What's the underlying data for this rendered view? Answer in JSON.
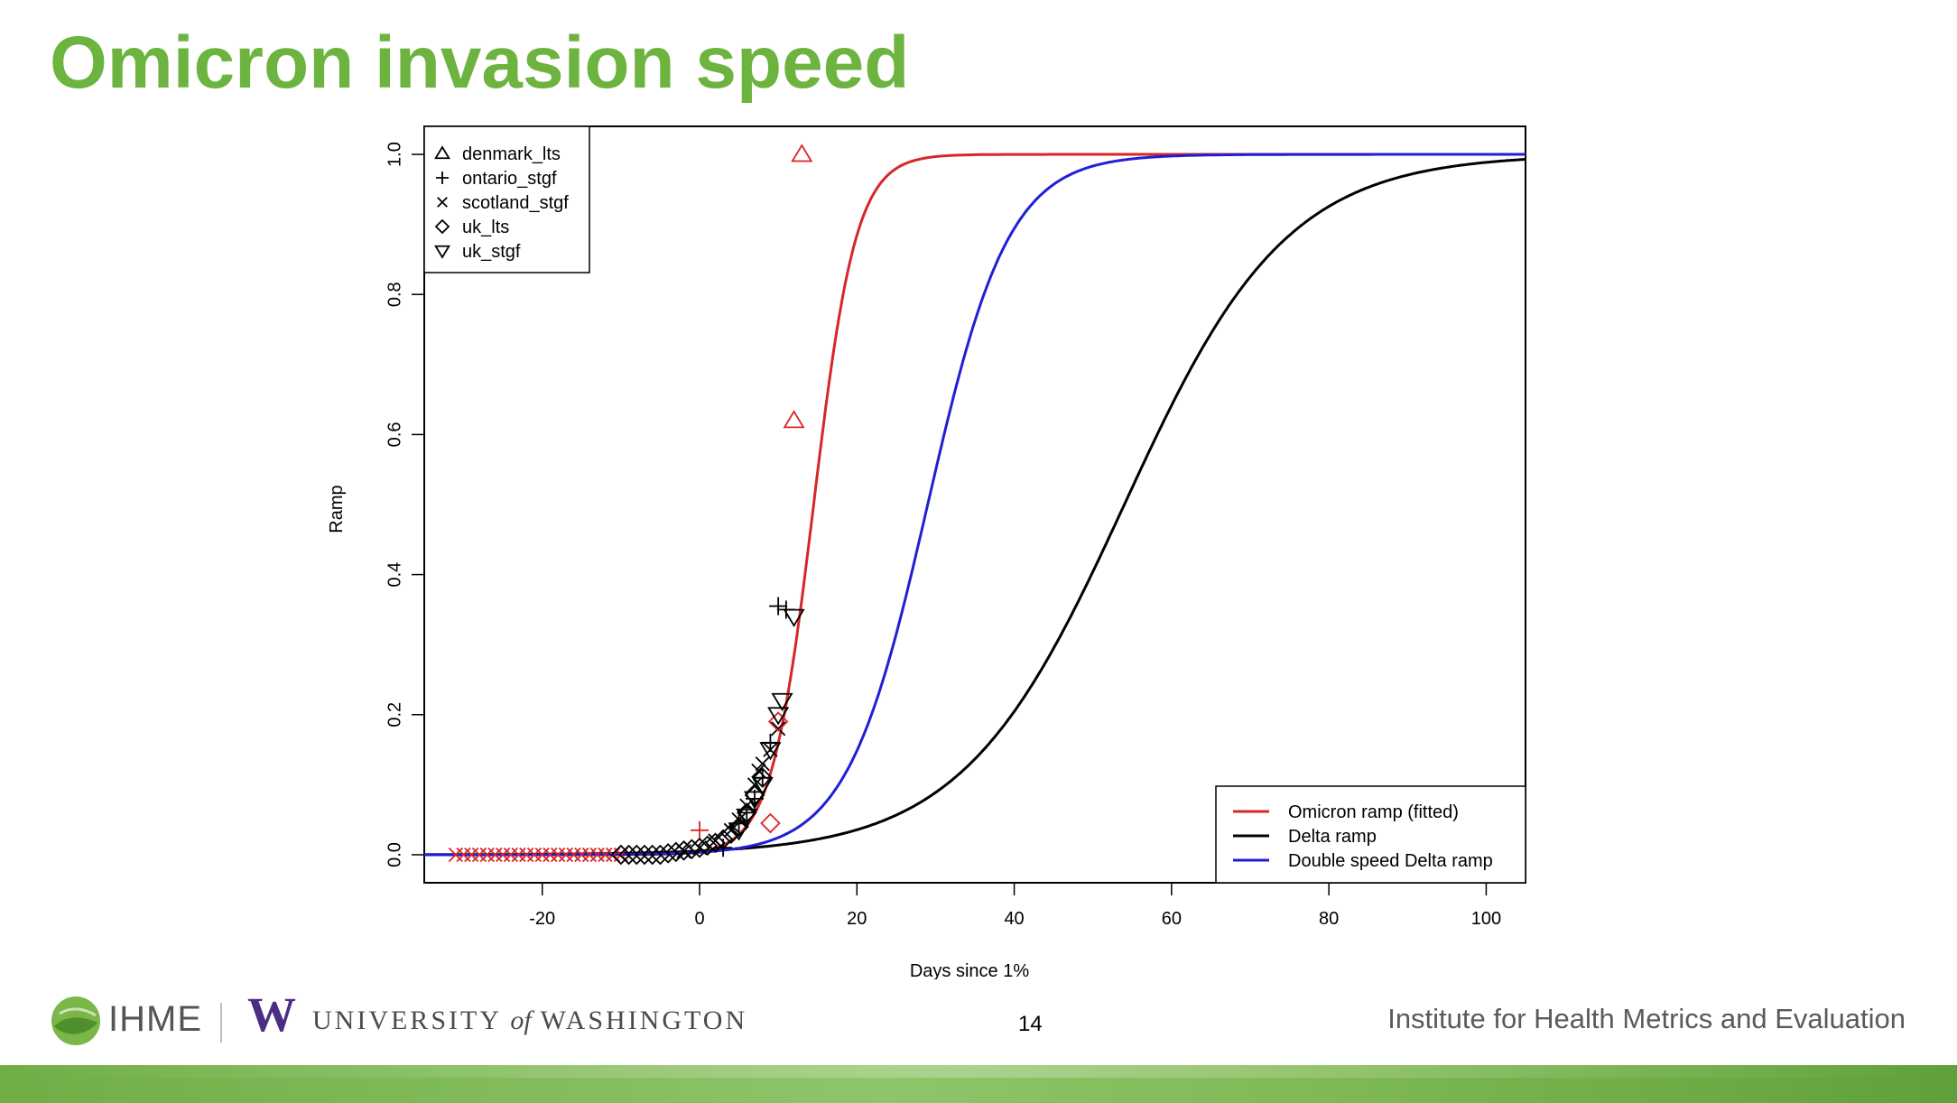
{
  "slide": {
    "title": "Omicron invasion speed",
    "title_color": "#6db33f",
    "page_number": "14"
  },
  "footer": {
    "ihme_label": "IHME",
    "uw_mark": "W",
    "uw_text_pre": "UNIVERSITY ",
    "uw_text_of": "of",
    "uw_text_post": " WASHINGTON",
    "institute": "Institute for Health Metrics and Evaluation",
    "ihme_icon": "leaf-circle-logo",
    "band_color": "#7ab648"
  },
  "chart_data": {
    "type": "scatter",
    "xlabel": "Days since 1%",
    "ylabel": "Ramp",
    "xlim": [
      -35,
      105
    ],
    "ylim": [
      -0.04,
      1.04
    ],
    "x_ticks": [
      -20,
      0,
      20,
      40,
      60,
      80,
      100
    ],
    "y_ticks": [
      0.0,
      0.2,
      0.4,
      0.6,
      0.8,
      1.0
    ],
    "x_tick_labels": [
      "-20",
      "0",
      "20",
      "40",
      "60",
      "80",
      "100"
    ],
    "y_tick_labels": [
      "0.0",
      "0.2",
      "0.4",
      "0.6",
      "0.8",
      "1.0"
    ],
    "grid": false,
    "point_legend_position": "top-left",
    "line_legend_position": "bottom-right",
    "point_series": [
      {
        "name": "denmark_lts",
        "marker": "triangle-up",
        "points": [
          {
            "x": 12,
            "y": 0.62,
            "color": "#d62728"
          },
          {
            "x": 13,
            "y": 1.0,
            "color": "#d62728"
          }
        ]
      },
      {
        "name": "ontario_stgf",
        "marker": "plus",
        "points": [
          {
            "x": 0,
            "y": 0.035,
            "color": "#d62728"
          },
          {
            "x": 3,
            "y": 0.01,
            "color": "#000000"
          },
          {
            "x": 5,
            "y": 0.045,
            "color": "#000000"
          },
          {
            "x": 6,
            "y": 0.06,
            "color": "#000000"
          },
          {
            "x": 7,
            "y": 0.08,
            "color": "#000000"
          },
          {
            "x": 8,
            "y": 0.11,
            "color": "#000000"
          },
          {
            "x": 9,
            "y": 0.16,
            "color": "#000000"
          },
          {
            "x": 10,
            "y": 0.355,
            "color": "#000000"
          },
          {
            "x": 11,
            "y": 0.35,
            "color": "#000000"
          }
        ]
      },
      {
        "name": "scotland_stgf",
        "marker": "cross",
        "points": [
          {
            "x": -31,
            "y": 0.0,
            "color": "#d62728"
          },
          {
            "x": -30,
            "y": 0.0,
            "color": "#d62728"
          },
          {
            "x": -29,
            "y": 0.0,
            "color": "#d62728"
          },
          {
            "x": -28,
            "y": 0.0,
            "color": "#d62728"
          },
          {
            "x": -27,
            "y": 0.0,
            "color": "#d62728"
          },
          {
            "x": -26,
            "y": 0.0,
            "color": "#d62728"
          },
          {
            "x": -25,
            "y": 0.0,
            "color": "#d62728"
          },
          {
            "x": -24,
            "y": 0.0,
            "color": "#d62728"
          },
          {
            "x": -23,
            "y": 0.0,
            "color": "#d62728"
          },
          {
            "x": -22,
            "y": 0.0,
            "color": "#d62728"
          },
          {
            "x": -21,
            "y": 0.0,
            "color": "#d62728"
          },
          {
            "x": -20,
            "y": 0.0,
            "color": "#d62728"
          },
          {
            "x": -19,
            "y": 0.0,
            "color": "#d62728"
          },
          {
            "x": -18,
            "y": 0.0,
            "color": "#d62728"
          },
          {
            "x": -17,
            "y": 0.0,
            "color": "#d62728"
          },
          {
            "x": -16,
            "y": 0.0,
            "color": "#d62728"
          },
          {
            "x": -15,
            "y": 0.0,
            "color": "#d62728"
          },
          {
            "x": -14,
            "y": 0.0,
            "color": "#d62728"
          },
          {
            "x": -13,
            "y": 0.0,
            "color": "#d62728"
          },
          {
            "x": -12,
            "y": 0.0,
            "color": "#d62728"
          },
          {
            "x": -11,
            "y": 0.0,
            "color": "#d62728"
          },
          {
            "x": -10,
            "y": 0.0,
            "color": "#d62728"
          },
          {
            "x": -2,
            "y": 0.005,
            "color": "#000000"
          },
          {
            "x": 0,
            "y": 0.01,
            "color": "#000000"
          },
          {
            "x": 2,
            "y": 0.02,
            "color": "#000000"
          },
          {
            "x": 4,
            "y": 0.035,
            "color": "#000000"
          },
          {
            "x": 5,
            "y": 0.05,
            "color": "#000000"
          },
          {
            "x": 6,
            "y": 0.07,
            "color": "#000000"
          },
          {
            "x": 7,
            "y": 0.1,
            "color": "#000000"
          },
          {
            "x": 7.5,
            "y": 0.12,
            "color": "#000000"
          },
          {
            "x": 8,
            "y": 0.13,
            "color": "#000000"
          },
          {
            "x": 9,
            "y": 0.15,
            "color": "#000000"
          },
          {
            "x": 10,
            "y": 0.18,
            "color": "#000000"
          }
        ]
      },
      {
        "name": "uk_lts",
        "marker": "diamond",
        "points": [
          {
            "x": -10,
            "y": 0.0,
            "color": "#000000"
          },
          {
            "x": -9,
            "y": 0.0,
            "color": "#000000"
          },
          {
            "x": -8,
            "y": 0.0,
            "color": "#000000"
          },
          {
            "x": -7,
            "y": 0.0,
            "color": "#000000"
          },
          {
            "x": -6,
            "y": 0.0,
            "color": "#000000"
          },
          {
            "x": -5,
            "y": 0.0,
            "color": "#000000"
          },
          {
            "x": -4,
            "y": 0.002,
            "color": "#000000"
          },
          {
            "x": -3,
            "y": 0.004,
            "color": "#000000"
          },
          {
            "x": -2,
            "y": 0.006,
            "color": "#000000"
          },
          {
            "x": -1,
            "y": 0.008,
            "color": "#000000"
          },
          {
            "x": 0,
            "y": 0.01,
            "color": "#000000"
          },
          {
            "x": 1,
            "y": 0.013,
            "color": "#000000"
          },
          {
            "x": 2,
            "y": 0.017,
            "color": "#000000"
          },
          {
            "x": 3,
            "y": 0.022,
            "color": "#000000"
          },
          {
            "x": 4,
            "y": 0.03,
            "color": "#000000"
          },
          {
            "x": 5,
            "y": 0.04,
            "color": "#000000"
          },
          {
            "x": 6,
            "y": 0.06,
            "color": "#000000"
          },
          {
            "x": 7,
            "y": 0.085,
            "color": "#000000"
          },
          {
            "x": 8,
            "y": 0.11,
            "color": "#000000"
          },
          {
            "x": 9,
            "y": 0.045,
            "color": "#d62728"
          },
          {
            "x": 10,
            "y": 0.19,
            "color": "#d62728"
          }
        ]
      },
      {
        "name": "uk_stgf",
        "marker": "triangle-down",
        "points": [
          {
            "x": 5,
            "y": 0.035,
            "color": "#000000"
          },
          {
            "x": 6,
            "y": 0.055,
            "color": "#000000"
          },
          {
            "x": 7,
            "y": 0.08,
            "color": "#000000"
          },
          {
            "x": 8,
            "y": 0.1,
            "color": "#000000"
          },
          {
            "x": 9,
            "y": 0.15,
            "color": "#000000"
          },
          {
            "x": 10,
            "y": 0.2,
            "color": "#000000"
          },
          {
            "x": 10.5,
            "y": 0.22,
            "color": "#000000"
          },
          {
            "x": 12,
            "y": 0.34,
            "color": "#000000"
          }
        ]
      }
    ],
    "line_series": [
      {
        "name": "Omicron ramp (fitted)",
        "color": "#d62728",
        "midpoint": 14.5,
        "rate": 0.37
      },
      {
        "name": "Delta ramp",
        "color": "#000000",
        "midpoint": 54,
        "rate": 0.097
      },
      {
        "name": "Double speed Delta ramp",
        "color": "#1f1fd6",
        "midpoint": 29,
        "rate": 0.194
      }
    ]
  }
}
